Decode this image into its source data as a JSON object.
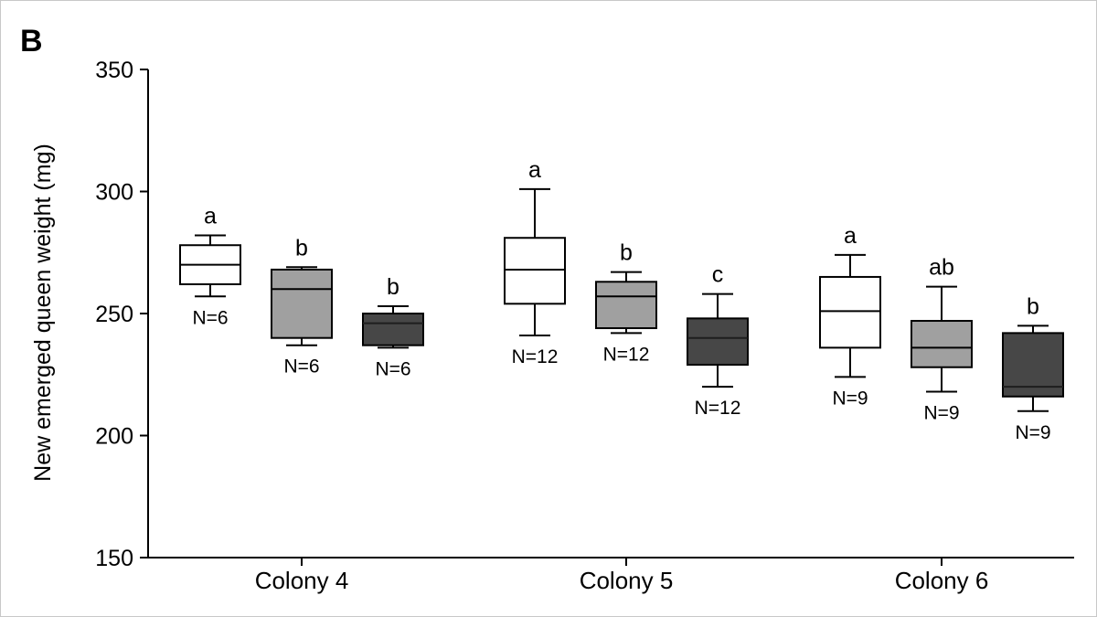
{
  "chart_data": {
    "type": "box",
    "panel_label": "B",
    "ylabel": "New emerged queen weight (mg)",
    "xlabel": "",
    "ylim": [
      150,
      350
    ],
    "yticks": [
      150,
      200,
      250,
      300,
      350
    ],
    "grid": false,
    "categories": [
      "Colony 4",
      "Colony 5",
      "Colony 6"
    ],
    "groups": [
      {
        "category": "Colony 4",
        "boxes": [
          {
            "fill": "#ffffff",
            "min": 257,
            "q1": 262,
            "median": 270,
            "q3": 278,
            "max": 282,
            "letter": "a",
            "n_label": "N=6"
          },
          {
            "fill": "#a0a0a0",
            "min": 237,
            "q1": 240,
            "median": 260,
            "q3": 268,
            "max": 269,
            "letter": "b",
            "n_label": "N=6"
          },
          {
            "fill": "#474747",
            "min": 236,
            "q1": 237,
            "median": 246,
            "q3": 250,
            "max": 253,
            "letter": "b",
            "n_label": "N=6"
          }
        ]
      },
      {
        "category": "Colony 5",
        "boxes": [
          {
            "fill": "#ffffff",
            "min": 241,
            "q1": 254,
            "median": 268,
            "q3": 281,
            "max": 301,
            "letter": "a",
            "n_label": "N=12"
          },
          {
            "fill": "#a0a0a0",
            "min": 242,
            "q1": 244,
            "median": 257,
            "q3": 263,
            "max": 267,
            "letter": "b",
            "n_label": "N=12"
          },
          {
            "fill": "#474747",
            "min": 220,
            "q1": 229,
            "median": 240,
            "q3": 248,
            "max": 258,
            "letter": "c",
            "n_label": "N=12"
          }
        ]
      },
      {
        "category": "Colony 6",
        "boxes": [
          {
            "fill": "#ffffff",
            "min": 224,
            "q1": 236,
            "median": 251,
            "q3": 265,
            "max": 274,
            "letter": "a",
            "n_label": "N=9"
          },
          {
            "fill": "#a0a0a0",
            "min": 218,
            "q1": 228,
            "median": 236,
            "q3": 247,
            "max": 261,
            "letter": "ab",
            "n_label": "N=9"
          },
          {
            "fill": "#474747",
            "min": 210,
            "q1": 216,
            "median": 220,
            "q3": 242,
            "max": 245,
            "letter": "b",
            "n_label": "N=9"
          }
        ]
      }
    ]
  }
}
